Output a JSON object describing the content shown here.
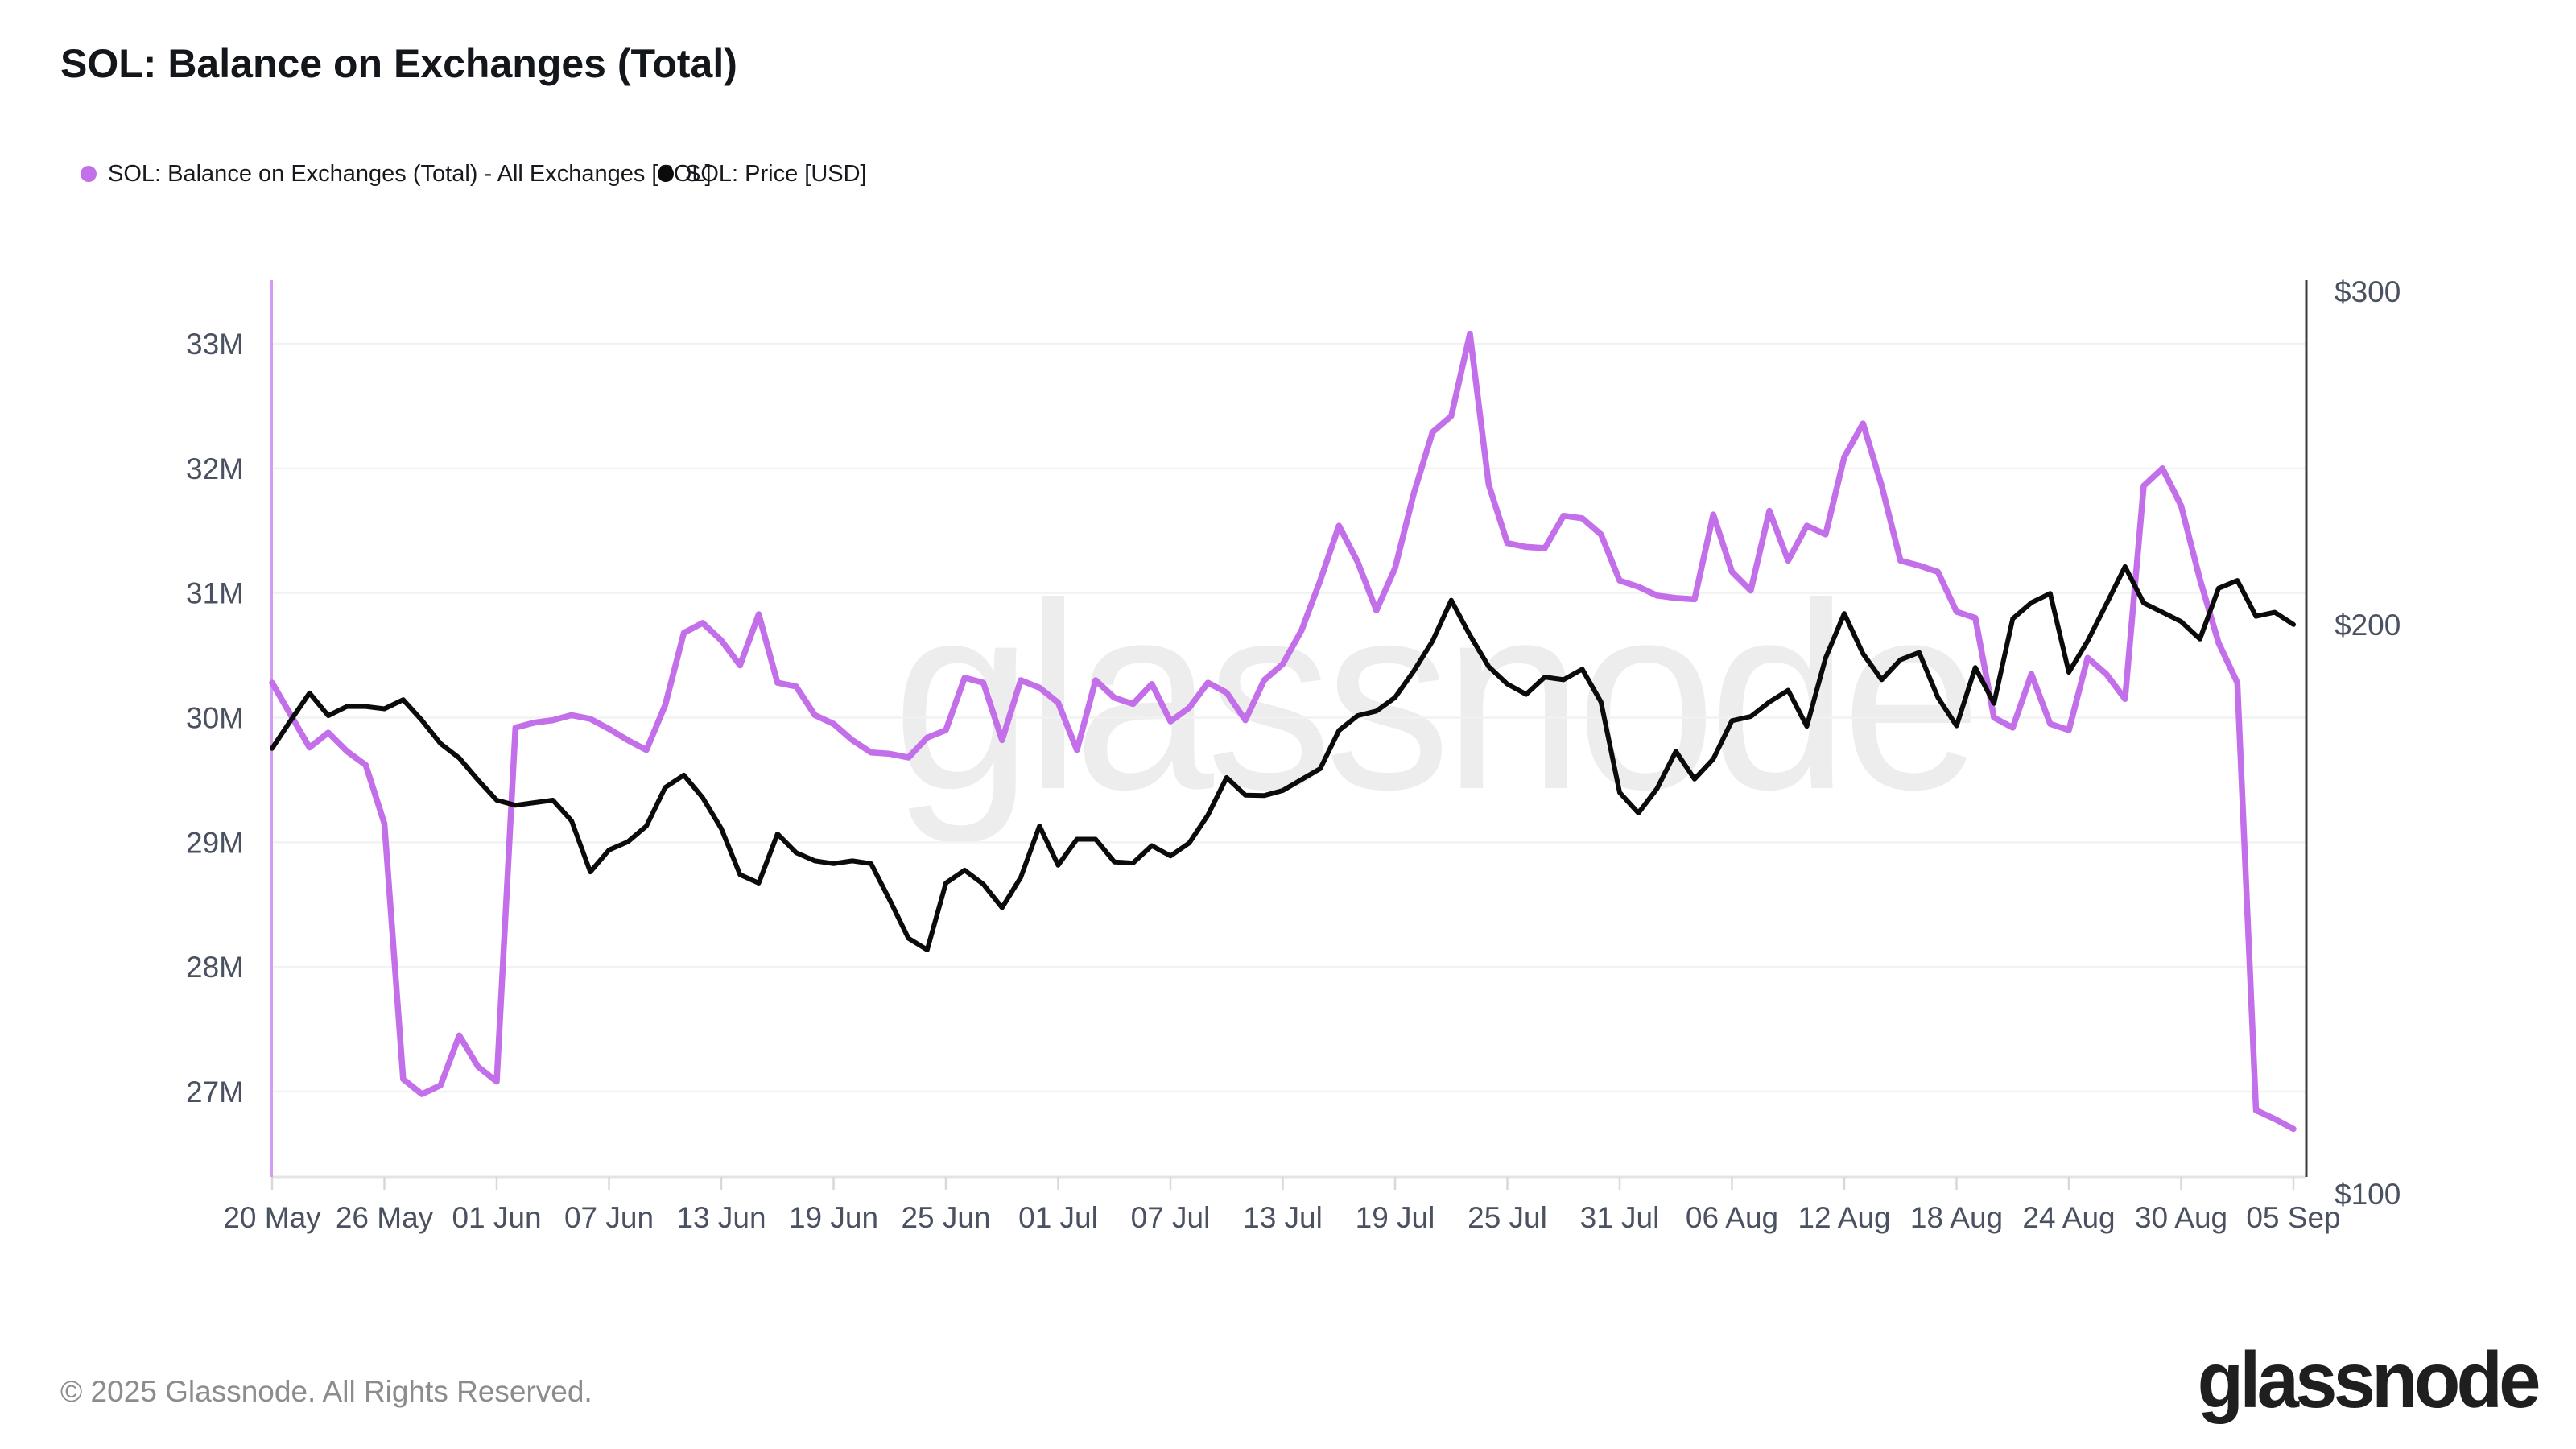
{
  "header": {
    "title": "SOL: Balance on Exchanges (Total)"
  },
  "legend": [
    {
      "label": "SOL: Balance on Exchanges (Total) - All Exchanges [SOL]",
      "color": "#c26fe9"
    },
    {
      "label": "SOL: Price [USD]",
      "color": "#0b0b0b"
    }
  ],
  "watermark": "glassnode",
  "footer": {
    "copyright": "© 2025 Glassnode. All Rights Reserved.",
    "logo_text": "glassnode"
  },
  "chart_data": {
    "type": "line",
    "title": "SOL: Balance on Exchanges (Total)",
    "x_axis": {
      "unit": "date",
      "start_label": "20 May",
      "end_label": "05 Sep",
      "tick_labels": [
        "20 May",
        "26 May",
        "01 Jun",
        "07 Jun",
        "13 Jun",
        "19 Jun",
        "25 Jun",
        "01 Jul",
        "07 Jul",
        "13 Jul",
        "19 Jul",
        "25 Jul",
        "31 Jul",
        "06 Aug",
        "12 Aug",
        "18 Aug",
        "24 Aug",
        "30 Aug",
        "05 Sep"
      ],
      "tick_day_indices": [
        0,
        6,
        12,
        18,
        24,
        30,
        36,
        42,
        48,
        54,
        60,
        66,
        72,
        78,
        84,
        90,
        96,
        102,
        108
      ],
      "days_total": 109
    },
    "y_left_axis": {
      "scale": "linear",
      "unit": "SOL balance (millions)",
      "tick_values": [
        33,
        32,
        31,
        30,
        29,
        28,
        27
      ],
      "tick_labels": [
        "33M",
        "32M",
        "31M",
        "30M",
        "29M",
        "28M",
        "27M"
      ],
      "axis_line_color": "#d49bf0"
    },
    "y_right_axis": {
      "scale": "log",
      "unit": "USD",
      "tick_values": [
        300,
        200,
        100
      ],
      "tick_labels": [
        "$300",
        "$200",
        "$100"
      ],
      "axis_line_color": "#3c3c3c"
    },
    "grid": {
      "horizontal": true,
      "vertical": false,
      "color": "#f2f2f2"
    },
    "legend_position": "top-left",
    "series": [
      {
        "name": "SOL: Balance on Exchanges (Total) - All Exchanges [SOL]",
        "axis": "left",
        "color": "#c26fe9",
        "stroke_width": 7.5,
        "values_unit": "million SOL",
        "values": [
          30.28,
          30.02,
          29.76,
          29.88,
          29.73,
          29.62,
          29.15,
          27.1,
          26.98,
          27.05,
          27.45,
          27.2,
          27.08,
          29.92,
          29.96,
          29.98,
          30.02,
          29.99,
          29.91,
          29.82,
          29.74,
          30.1,
          30.68,
          30.76,
          30.62,
          30.42,
          30.83,
          30.28,
          30.25,
          30.02,
          29.95,
          29.82,
          29.72,
          29.71,
          29.68,
          29.84,
          29.9,
          30.32,
          30.28,
          29.82,
          30.3,
          30.24,
          30.12,
          29.74,
          30.3,
          30.16,
          30.11,
          30.27,
          29.97,
          30.08,
          30.28,
          30.2,
          29.98,
          30.3,
          30.43,
          30.7,
          31.1,
          31.54,
          31.25,
          30.86,
          31.2,
          31.8,
          32.29,
          32.42,
          33.08,
          31.87,
          31.4,
          31.37,
          31.36,
          31.62,
          31.6,
          31.47,
          31.1,
          31.05,
          30.98,
          30.96,
          30.95,
          31.63,
          31.17,
          31.02,
          31.66,
          31.26,
          31.54,
          31.47,
          32.09,
          32.36,
          31.86,
          31.26,
          31.22,
          31.17,
          30.85,
          30.8,
          30.0,
          29.92,
          30.35,
          29.95,
          29.9,
          30.48,
          30.35,
          30.15,
          31.86,
          32.0,
          31.7,
          31.11,
          30.6,
          30.28,
          26.85,
          26.78,
          26.7
        ]
      },
      {
        "name": "SOL: Price [USD]",
        "axis": "right",
        "color": "#0b0b0b",
        "stroke_width": 6,
        "values_unit": "USD",
        "values": [
          172,
          178,
          184,
          179,
          181,
          181,
          180.5,
          182.5,
          178,
          173,
          170,
          165.5,
          161.5,
          160.5,
          161,
          161.5,
          157.5,
          148,
          152,
          153.5,
          156.5,
          164,
          166.5,
          162,
          156,
          147.5,
          146,
          155,
          151.5,
          150,
          149.5,
          150,
          149.5,
          143,
          136.5,
          134.6,
          146,
          148.3,
          145.8,
          141.7,
          147,
          156.5,
          149.2,
          154,
          154,
          149.8,
          149.6,
          152.8,
          150.9,
          153.3,
          158.6,
          166,
          162.5,
          162.4,
          163.4,
          165.6,
          167.8,
          175.8,
          179,
          180,
          183,
          189,
          196,
          206,
          197.4,
          190,
          186,
          183.7,
          187.6,
          187,
          189.4,
          182,
          163,
          159,
          163.8,
          171.4,
          165.7,
          169.8,
          177.9,
          178.8,
          182,
          184.6,
          176.7,
          192,
          202.7,
          193,
          187,
          191.6,
          193.3,
          183,
          176.8,
          189.8,
          181.7,
          201.4,
          205.4,
          207.7,
          188.7,
          196,
          205,
          214.6,
          205.3,
          203,
          200.7,
          196.5,
          209,
          211,
          202,
          203,
          200
        ]
      }
    ]
  }
}
